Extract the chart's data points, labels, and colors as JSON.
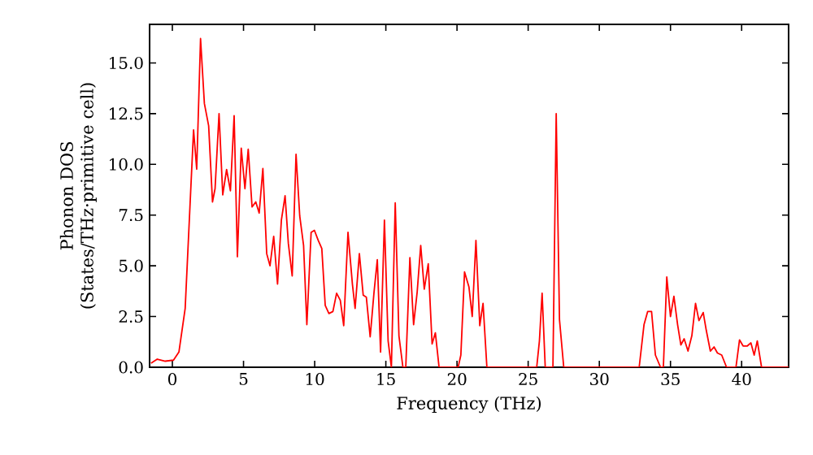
{
  "chart_data": {
    "type": "line",
    "xlabel": "Frequency (THz)",
    "ylabel": "Phonon DOS (States/THz·primitive cell)",
    "xlim": [
      -1.6,
      43.3
    ],
    "ylim": [
      0,
      16.9
    ],
    "xticks": [
      0,
      5,
      10,
      15,
      20,
      25,
      30,
      35,
      40
    ],
    "yticks": [
      {
        "value": 0,
        "label": "0.0"
      },
      {
        "value": 2.5,
        "label": "2.5"
      },
      {
        "value": 5,
        "label": "5.0"
      },
      {
        "value": 7.5,
        "label": "7.5"
      },
      {
        "value": 10,
        "label": "10.0"
      },
      {
        "value": 12.5,
        "label": "12.5"
      },
      {
        "value": 15,
        "label": "15.0"
      }
    ],
    "marker": "none",
    "line_style": "solid",
    "series": [
      {
        "color": "#ff0000",
        "x": [
          -1.5,
          -1.06,
          -0.5,
          0.08,
          0.46,
          0.9,
          1.49,
          1.71,
          1.98,
          2.25,
          2.55,
          2.82,
          3.0,
          3.28,
          3.54,
          3.81,
          4.08,
          4.34,
          4.57,
          4.84,
          5.1,
          5.33,
          5.6,
          5.86,
          6.1,
          6.36,
          6.63,
          6.86,
          7.12,
          7.39,
          7.66,
          7.92,
          8.15,
          8.42,
          8.69,
          8.95,
          9.22,
          9.45,
          9.75,
          9.98,
          10.25,
          10.5,
          10.74,
          11.0,
          11.28,
          11.54,
          11.8,
          12.04,
          12.34,
          12.65,
          12.84,
          13.14,
          13.41,
          13.63,
          13.9,
          14.17,
          14.4,
          14.63,
          14.9,
          15.16,
          15.39,
          15.66,
          15.92,
          16.2,
          16.4,
          16.69,
          16.95,
          17.2,
          17.45,
          17.7,
          17.98,
          18.25,
          18.48,
          18.74,
          20.08,
          20.27,
          20.53,
          20.84,
          21.07,
          21.33,
          21.6,
          21.83,
          22.1,
          25.6,
          25.79,
          25.98,
          26.2,
          26.74,
          26.97,
          27.2,
          27.5,
          32.8,
          33.14,
          33.4,
          33.67,
          33.94,
          34.3,
          34.5,
          34.74,
          35.0,
          35.24,
          35.5,
          35.73,
          35.96,
          36.23,
          36.5,
          36.76,
          37.0,
          37.3,
          37.52,
          37.8,
          38.06,
          38.3,
          38.6,
          38.94,
          39.6,
          39.85,
          40.1,
          40.4,
          40.65,
          40.88,
          41.1,
          41.4,
          43.3
        ],
        "values": [
          0.2,
          0.4,
          0.3,
          0.35,
          0.75,
          2.9,
          11.7,
          9.76,
          16.2,
          13,
          11.9,
          8.15,
          8.8,
          12.5,
          8.5,
          9.75,
          8.7,
          12.4,
          5.45,
          10.8,
          8.8,
          10.75,
          7.9,
          8.15,
          7.6,
          9.8,
          5.6,
          5.0,
          6.45,
          4.1,
          7.25,
          8.45,
          6.1,
          4.5,
          10.5,
          7.45,
          6.0,
          2.1,
          6.65,
          6.75,
          6.25,
          5.85,
          3.05,
          2.65,
          2.75,
          3.65,
          3.3,
          2.05,
          6.65,
          4.1,
          2.9,
          5.6,
          3.55,
          3.45,
          1.5,
          3.7,
          5.3,
          0.75,
          7.25,
          1.3,
          0,
          8.1,
          1.55,
          0,
          0,
          5.4,
          2.1,
          3.7,
          6.0,
          3.85,
          5.1,
          1.15,
          1.7,
          0,
          0,
          0.6,
          4.7,
          3.95,
          2.5,
          6.25,
          2.05,
          3.15,
          0,
          0,
          1.3,
          3.65,
          0,
          0,
          12.5,
          2.35,
          0,
          0,
          2.1,
          2.75,
          2.75,
          0.6,
          0,
          0,
          4.45,
          2.5,
          3.5,
          2.1,
          1.1,
          1.4,
          0.8,
          1.55,
          3.15,
          2.3,
          2.7,
          1.8,
          0.8,
          1.0,
          0.7,
          0.6,
          0,
          0,
          1.35,
          1.05,
          1.05,
          1.2,
          0.6,
          1.3,
          0,
          0
        ]
      }
    ]
  }
}
